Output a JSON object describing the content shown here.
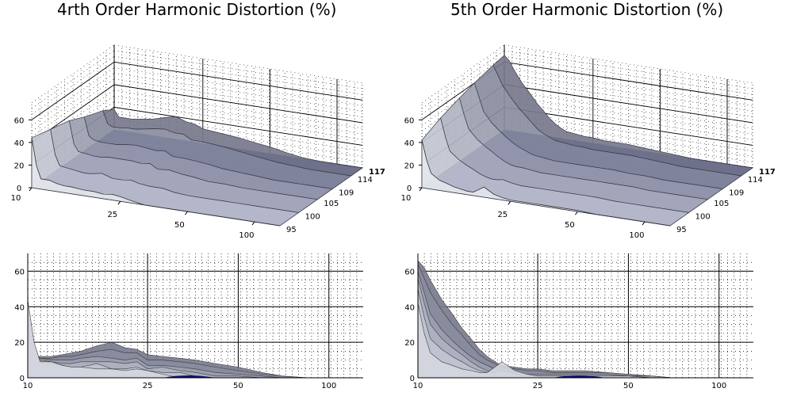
{
  "panels": [
    {
      "title": "4rth Order Harmonic Distortion (%)",
      "chart_data": {
        "type": "area",
        "view": "3d-surface",
        "x_label": "",
        "x_scale": "log",
        "x_ticks": [
          10,
          25,
          50,
          100
        ],
        "z_ticks": [
          0,
          20,
          40,
          60
        ],
        "y_ticks": [
          95,
          100,
          105,
          109,
          114,
          117
        ],
        "zlim": [
          0,
          70
        ],
        "series": [
          {
            "level": 95,
            "x": [
              10,
              10.5,
              11,
              12,
              13,
              14,
              15,
              17,
              19,
              21,
              23,
              25,
              28,
              32,
              36,
              42,
              50,
              60,
              70,
              85,
              100,
              130
            ],
            "y": [
              44,
              20,
              9,
              9,
              7,
              6,
              6,
              5,
              5,
              4,
              5,
              4,
              2,
              0,
              0,
              0,
              0,
              0,
              0,
              0,
              0,
              0
            ]
          },
          {
            "level": 100,
            "x": [
              10,
              10.5,
              11,
              12,
              13,
              14,
              15,
              17,
              19,
              21,
              23,
              25,
              28,
              32,
              36,
              42,
              50,
              60,
              70,
              85,
              100,
              130
            ],
            "y": [
              40,
              18,
              9,
              8,
              7,
              6,
              6,
              8,
              5,
              5,
              6,
              4,
              3,
              3,
              1,
              0,
              0,
              0,
              0,
              0,
              0,
              0
            ]
          },
          {
            "level": 105,
            "x": [
              10,
              10.5,
              11,
              12,
              13,
              14,
              15,
              17,
              19,
              21,
              23,
              25,
              28,
              32,
              36,
              42,
              50,
              60,
              70,
              85,
              100,
              130
            ],
            "y": [
              36,
              16,
              10,
              9,
              8,
              8,
              9,
              9,
              9,
              8,
              9,
              5,
              6,
              4,
              3,
              1,
              1,
              0,
              0,
              0,
              0,
              0
            ]
          },
          {
            "level": 109,
            "x": [
              10,
              10.5,
              11,
              12,
              13,
              14,
              15,
              17,
              19,
              21,
              23,
              25,
              28,
              32,
              36,
              42,
              50,
              60,
              70,
              85,
              100,
              130
            ],
            "y": [
              30,
              14,
              11,
              10,
              10,
              10,
              11,
              12,
              11,
              10,
              11,
              7,
              7,
              6,
              5,
              3,
              2,
              1,
              0,
              0,
              0,
              0
            ]
          },
          {
            "level": 114,
            "x": [
              10,
              10.5,
              11,
              12,
              13,
              14,
              15,
              17,
              19,
              21,
              23,
              25,
              28,
              32,
              36,
              42,
              50,
              60,
              70,
              85,
              100,
              130
            ],
            "y": [
              24,
              13,
              11,
              11,
              12,
              12,
              13,
              15,
              16,
              14,
              14,
              10,
              10,
              9,
              8,
              6,
              4,
              2,
              1,
              0,
              0,
              0
            ]
          },
          {
            "level": 117,
            "x": [
              10,
              10.5,
              11,
              12,
              13,
              14,
              15,
              17,
              19,
              21,
              23,
              25,
              28,
              32,
              36,
              42,
              50,
              60,
              70,
              85,
              100,
              130
            ],
            "y": [
              18,
              12,
              12,
              12,
              13,
              14,
              15,
              18,
              20,
              17,
              16,
              13,
              12,
              11,
              10,
              8,
              6,
              3,
              1,
              0,
              0,
              0
            ]
          }
        ]
      },
      "front_view": {
        "x_ticks": [
          10,
          25,
          50,
          100
        ],
        "y_ticks": [
          0,
          20,
          40,
          60
        ]
      }
    },
    {
      "title": "5th Order Harmonic Distortion (%)",
      "chart_data": {
        "type": "area",
        "view": "3d-surface",
        "x_label": "",
        "x_scale": "log",
        "x_ticks": [
          10,
          25,
          50,
          100
        ],
        "z_ticks": [
          0,
          20,
          40,
          60
        ],
        "y_ticks": [
          95,
          100,
          105,
          109,
          114,
          117
        ],
        "zlim": [
          0,
          70
        ],
        "series": [
          {
            "level": 95,
            "x": [
              10,
              10.5,
              11,
              12,
              13,
              14,
              15,
              16,
              17,
              18,
              19,
              21,
              23,
              25,
              28,
              32,
              36,
              42,
              50,
              60,
              70,
              85,
              100,
              130
            ],
            "y": [
              42,
              25,
              14,
              9,
              7,
              5,
              4,
              3,
              3,
              6,
              9,
              4,
              2,
              1,
              1,
              1,
              1,
              1,
              1,
              0,
              0,
              0,
              0,
              0
            ]
          },
          {
            "level": 100,
            "x": [
              10,
              10.5,
              11,
              12,
              13,
              14,
              15,
              16,
              17,
              18,
              19,
              21,
              23,
              25,
              28,
              32,
              36,
              42,
              50,
              60,
              70,
              85,
              100,
              130
            ],
            "y": [
              50,
              34,
              22,
              16,
              12,
              9,
              6,
              4,
              3,
              3,
              4,
              2,
              1,
              1,
              1,
              1,
              1,
              1,
              1,
              0,
              0,
              0,
              0,
              0
            ]
          },
          {
            "level": 105,
            "x": [
              10,
              10.5,
              11,
              12,
              13,
              14,
              15,
              16,
              17,
              18,
              19,
              21,
              23,
              25,
              28,
              32,
              36,
              42,
              50,
              60,
              70,
              85,
              100,
              130
            ],
            "y": [
              56,
              42,
              30,
              22,
              17,
              13,
              9,
              6,
              4,
              3,
              3,
              2,
              1,
              1,
              1,
              1,
              1,
              1,
              1,
              1,
              0,
              0,
              0,
              0
            ]
          },
          {
            "level": 109,
            "x": [
              10,
              10.5,
              11,
              12,
              13,
              14,
              15,
              16,
              17,
              18,
              19,
              21,
              23,
              25,
              28,
              32,
              36,
              42,
              50,
              60,
              70,
              85,
              100,
              130
            ],
            "y": [
              60,
              48,
              36,
              27,
              21,
              16,
              12,
              9,
              7,
              5,
              4,
              3,
              2,
              2,
              2,
              2,
              2,
              2,
              1,
              1,
              0,
              0,
              0,
              0
            ]
          },
          {
            "level": 114,
            "x": [
              10,
              10.5,
              11,
              12,
              13,
              14,
              15,
              16,
              17,
              18,
              19,
              21,
              23,
              25,
              28,
              32,
              36,
              42,
              50,
              60,
              70,
              85,
              100,
              130
            ],
            "y": [
              64,
              56,
              48,
              38,
              30,
              24,
              18,
              13,
              10,
              8,
              6,
              5,
              4,
              4,
              3,
              3,
              3,
              3,
              2,
              1,
              0,
              0,
              0,
              0
            ]
          },
          {
            "level": 117,
            "x": [
              10,
              10.5,
              11,
              12,
              13,
              14,
              15,
              16,
              17,
              18,
              19,
              21,
              23,
              25,
              28,
              32,
              36,
              42,
              50,
              60,
              70,
              85,
              100,
              130
            ],
            "y": [
              66,
              62,
              55,
              44,
              36,
              28,
              22,
              16,
              12,
              9,
              7,
              6,
              5,
              5,
              4,
              4,
              4,
              3,
              2,
              1,
              0,
              0,
              0,
              0
            ]
          }
        ]
      },
      "front_view": {
        "x_ticks": [
          10,
          25,
          50,
          100
        ],
        "y_ticks": [
          0,
          20,
          40,
          60
        ]
      }
    }
  ]
}
